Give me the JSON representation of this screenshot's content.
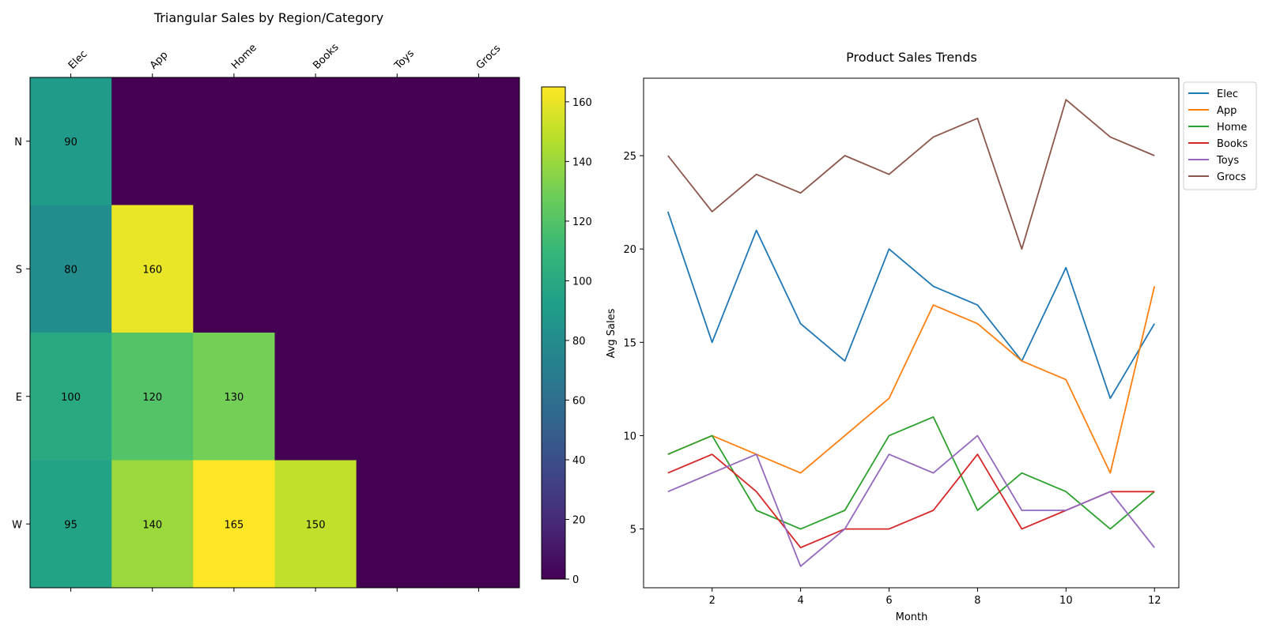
{
  "chart_data": [
    {
      "type": "heatmap",
      "title": "Triangular Sales by Region/Category",
      "x_categories": [
        "Elec",
        "App",
        "Home",
        "Books",
        "Toys",
        "Grocs"
      ],
      "y_categories": [
        "N",
        "S",
        "E",
        "W"
      ],
      "values": [
        [
          90,
          0,
          0,
          0,
          0,
          0
        ],
        [
          80,
          160,
          0,
          0,
          0,
          0
        ],
        [
          100,
          120,
          130,
          0,
          0,
          0
        ],
        [
          95,
          140,
          165,
          150,
          0,
          0
        ]
      ],
      "colorbar": {
        "min": 0,
        "max": 165,
        "ticks": [
          0,
          20,
          40,
          60,
          80,
          100,
          120,
          140,
          160
        ]
      },
      "colormap": "viridis"
    },
    {
      "type": "line",
      "title": "Product Sales Trends",
      "xlabel": "Month",
      "ylabel": "Avg Sales",
      "x": [
        1,
        2,
        3,
        4,
        5,
        6,
        7,
        8,
        9,
        10,
        11,
        12
      ],
      "xlim": [
        0.45,
        12.55
      ],
      "ylim": [
        1.85,
        29.15
      ],
      "xticks": [
        2,
        4,
        6,
        8,
        10,
        12
      ],
      "yticks": [
        5,
        10,
        15,
        20,
        25
      ],
      "legend": "upper-right-outside",
      "grid": false,
      "series": [
        {
          "name": "Elec",
          "color": "#1f77b4",
          "values": [
            22,
            15,
            21,
            16,
            14,
            20,
            18,
            17,
            14,
            19,
            12,
            16
          ]
        },
        {
          "name": "App",
          "color": "#ff7f0e",
          "values": [
            9,
            10,
            9,
            8,
            10,
            12,
            17,
            16,
            14,
            13,
            8,
            18
          ]
        },
        {
          "name": "Home",
          "color": "#2ca02c",
          "values": [
            9,
            10,
            6,
            5,
            6,
            10,
            11,
            6,
            8,
            7,
            5,
            7
          ]
        },
        {
          "name": "Books",
          "color": "#d62728",
          "values": [
            8,
            9,
            7,
            4,
            5,
            5,
            6,
            9,
            5,
            6,
            7,
            7
          ]
        },
        {
          "name": "Toys",
          "color": "#9467bd",
          "values": [
            7,
            8,
            9,
            3,
            5,
            9,
            8,
            10,
            6,
            6,
            7,
            4
          ]
        },
        {
          "name": "Grocs",
          "color": "#8c564b",
          "values": [
            25,
            22,
            24,
            23,
            25,
            24,
            26,
            27,
            20,
            28,
            26,
            25
          ]
        }
      ]
    }
  ]
}
